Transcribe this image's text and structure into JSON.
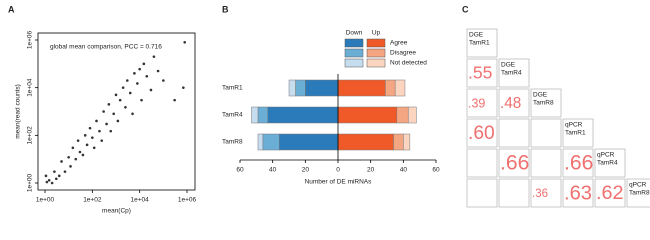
{
  "chart_data": [
    {
      "type": "scatter",
      "panel_label": "A",
      "annotation": "global mean comparison, PCC = 0.716",
      "x_label": "mean(Cp)",
      "y_label": "mean(read counts)",
      "color": "#333333",
      "log_x": true,
      "log_y": true,
      "x": [
        1.2,
        1.5,
        2,
        1.1,
        3,
        2.5,
        4,
        5,
        7,
        10,
        12,
        15,
        20,
        25,
        30,
        40,
        50,
        60,
        80,
        100,
        120,
        150,
        200,
        250,
        300,
        400,
        500,
        600,
        800,
        1000,
        1200,
        1500,
        2000,
        2500,
        3000,
        4000,
        5000,
        6000,
        8000,
        10000,
        12000,
        15000,
        20000,
        30000,
        40000,
        60000,
        100000,
        300000,
        700000,
        800000
      ],
      "y": [
        1.1,
        1.3,
        1,
        2,
        1.5,
        3,
        2,
        8,
        3,
        12,
        5,
        30,
        10,
        60,
        20,
        15,
        100,
        40,
        200,
        80,
        30,
        400,
        150,
        60,
        1000,
        300,
        2000,
        150,
        800,
        5000,
        400,
        3000,
        10000,
        1500,
        20000,
        6000,
        800,
        40000,
        15000,
        60000,
        3000,
        100000,
        30000,
        8000,
        200000,
        50000,
        20000,
        3000,
        10000,
        800000
      ],
      "xlim": [
        1,
        1000000
      ],
      "ylim": [
        1,
        1000000
      ],
      "xticks": [
        {
          "value": 1,
          "label": "1e+00"
        },
        {
          "value": 100,
          "label": "1e+02"
        },
        {
          "value": 10000,
          "label": "1e+04"
        },
        {
          "value": 1000000,
          "label": "1e+06"
        }
      ],
      "yticks": [
        {
          "value": 1,
          "label": "1e+00"
        },
        {
          "value": 100,
          "label": "1e+02"
        },
        {
          "value": 10000,
          "label": "1e+04"
        },
        {
          "value": 1000000,
          "label": "1e+06"
        }
      ]
    },
    {
      "type": "diverging_bar",
      "panel_label": "B",
      "x_label": "Number of DE miRNAs",
      "legend_headers": [
        "Down",
        "Up"
      ],
      "categories": [
        "TamR1",
        "TamR4",
        "TamR8"
      ],
      "series": [
        {
          "name": "Agree",
          "down_color": "#2b7bba",
          "up_color": "#f05a28",
          "down_values": [
            -20,
            -43,
            -36
          ],
          "up_values": [
            29,
            36,
            34
          ]
        },
        {
          "name": "Disagree",
          "down_color": "#6aaed6",
          "up_color": "#f4a582",
          "down_values": [
            -6,
            -6,
            -10
          ],
          "up_values": [
            6,
            7,
            6
          ]
        },
        {
          "name": "Not detected",
          "down_color": "#c6dcef",
          "up_color": "#fbd5c0",
          "down_values": [
            -4,
            -4,
            -3
          ],
          "up_values": [
            6,
            5,
            4
          ]
        }
      ],
      "xlim": [
        -60,
        60
      ],
      "xticks": [
        {
          "value": -60,
          "label": "60"
        },
        {
          "value": -40,
          "label": "40"
        },
        {
          "value": -20,
          "label": "20"
        },
        0,
        20,
        40,
        60
      ]
    },
    {
      "type": "matrix",
      "panel_label": "C",
      "color": "#f07070",
      "labels": [
        [
          "DGE",
          "TamR1"
        ],
        [
          "DGE",
          "TamR4"
        ],
        [
          "DGE",
          "TamR8"
        ],
        [
          "qPCR",
          "TamR1"
        ],
        [
          "qPCR",
          "TamR4"
        ],
        [
          "qPCR",
          "TamR8"
        ]
      ],
      "values": [
        [],
        [
          0.55
        ],
        [
          0.39,
          0.48
        ],
        [
          0.6,
          null,
          null
        ],
        [
          null,
          0.66,
          null,
          0.66
        ],
        [
          null,
          null,
          0.36,
          0.63,
          0.62
        ]
      ],
      "value_labels": [
        [],
        [
          ".55"
        ],
        [
          ".39",
          ".48"
        ],
        [
          ".60",
          null,
          null
        ],
        [
          null,
          ".66",
          null,
          ".66"
        ],
        [
          null,
          null,
          ".36",
          ".63",
          ".62"
        ]
      ]
    }
  ]
}
